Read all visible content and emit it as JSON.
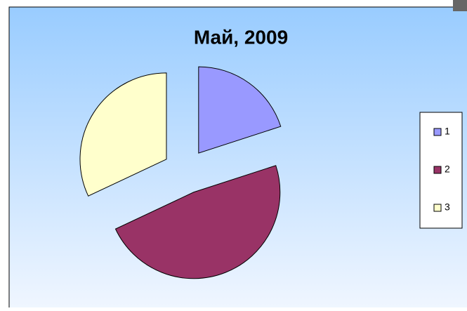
{
  "chart_data": {
    "type": "pie",
    "title": "Май, 2009",
    "categories": [
      "1",
      "2",
      "3"
    ],
    "values": [
      20,
      48,
      32
    ],
    "colors": [
      "#9999ff",
      "#993366",
      "#ffffcc"
    ],
    "legend": "right"
  }
}
